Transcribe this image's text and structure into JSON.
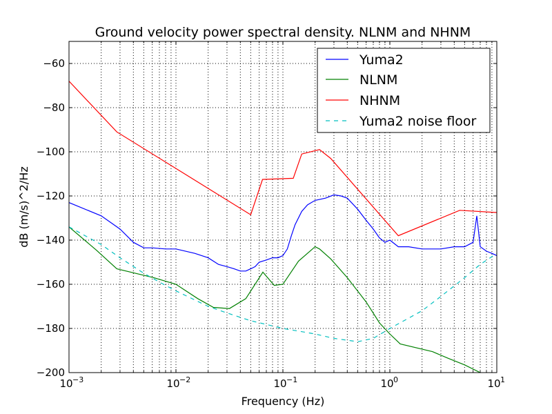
{
  "chart_data": {
    "type": "line",
    "title": "Ground velocity power spectral density. NLNM and NHNM",
    "xlabel": "Frequency (Hz)",
    "ylabel": "dB (m/s)^2/Hz",
    "xscale": "log",
    "xlim": [
      0.001,
      10
    ],
    "ylim": [
      -200,
      -50
    ],
    "grid": true,
    "legend_position": "top-right",
    "x_ticks": [
      {
        "value": 0.001,
        "base": "10",
        "exp": "−3"
      },
      {
        "value": 0.01,
        "base": "10",
        "exp": "−2"
      },
      {
        "value": 0.1,
        "base": "10",
        "exp": "−1"
      },
      {
        "value": 1,
        "base": "10",
        "exp": "0"
      },
      {
        "value": 10,
        "base": "10",
        "exp": "1"
      }
    ],
    "y_ticks": [
      {
        "value": -60,
        "label": "−60"
      },
      {
        "value": -80,
        "label": "−80"
      },
      {
        "value": -100,
        "label": "−100"
      },
      {
        "value": -120,
        "label": "−120"
      },
      {
        "value": -140,
        "label": "−140"
      },
      {
        "value": -160,
        "label": "−160"
      },
      {
        "value": -180,
        "label": "−180"
      },
      {
        "value": -200,
        "label": "−200"
      }
    ],
    "series": [
      {
        "name": "Yuma2",
        "color": "#0000ff",
        "dash": "solid",
        "x": [
          0.001,
          0.002,
          0.003,
          0.004,
          0.005,
          0.006,
          0.008,
          0.01,
          0.015,
          0.02,
          0.025,
          0.03,
          0.035,
          0.04,
          0.045,
          0.05,
          0.055,
          0.06,
          0.07,
          0.08,
          0.09,
          0.1,
          0.11,
          0.12,
          0.13,
          0.15,
          0.17,
          0.2,
          0.25,
          0.3,
          0.35,
          0.4,
          0.5,
          0.6,
          0.7,
          0.8,
          0.9,
          1.0,
          1.2,
          1.5,
          2,
          2.5,
          3,
          4,
          5,
          6,
          6.5,
          7,
          8,
          9,
          10
        ],
        "y": [
          -123,
          -129,
          -135,
          -141,
          -143.5,
          -143.5,
          -144,
          -144,
          -146,
          -148,
          -151,
          -152,
          -153,
          -154,
          -154,
          -153,
          -152,
          -150,
          -149,
          -148,
          -148,
          -147,
          -144,
          -138,
          -133,
          -127,
          -124,
          -122,
          -121,
          -119.5,
          -120,
          -121,
          -126,
          -131,
          -135,
          -139,
          -141,
          -140,
          -143,
          -143,
          -144,
          -144,
          -144,
          -143,
          -143,
          -141,
          -129,
          -143,
          -145,
          -146,
          -147
        ]
      },
      {
        "name": "NLNM",
        "color": "#008000",
        "dash": "solid",
        "x": [
          0.001,
          0.0018,
          0.0028,
          0.0062,
          0.01,
          0.016,
          0.0225,
          0.0232,
          0.0316,
          0.045,
          0.065,
          0.083,
          0.1,
          0.14,
          0.2,
          0.22,
          0.28,
          0.4,
          0.6,
          0.8,
          1.0,
          1.25,
          2.5,
          3.5,
          5,
          7,
          10
        ],
        "y": [
          -134,
          -144.5,
          -153,
          -157,
          -160,
          -166.5,
          -170.5,
          -170.5,
          -171,
          -166.5,
          -154.5,
          -160.5,
          -160,
          -149.5,
          -143,
          -144,
          -148.5,
          -157,
          -168,
          -177.5,
          -182.5,
          -187,
          -190.5,
          -193.5,
          -196.5,
          -200,
          -202
        ]
      },
      {
        "name": "NHNM",
        "color": "#ff0000",
        "dash": "solid",
        "x": [
          0.001,
          0.0028,
          0.05,
          0.0645,
          0.125,
          0.15,
          0.22,
          0.28,
          1.2,
          4.5,
          10
        ],
        "y": [
          -68,
          -91,
          -128.5,
          -112.5,
          -112,
          -101,
          -99,
          -103,
          -138,
          -126.5,
          -127.5
        ]
      },
      {
        "name": "Yuma2 noise floor",
        "color": "#00bfbf",
        "dash": "dashed",
        "x": [
          0.001,
          0.002,
          0.003,
          0.005,
          0.007,
          0.01,
          0.02,
          0.03,
          0.05,
          0.1,
          0.2,
          0.3,
          0.5,
          0.7,
          1.0,
          2,
          3,
          5,
          7,
          10
        ],
        "y": [
          -134,
          -142,
          -148,
          -155,
          -159,
          -163,
          -170,
          -173,
          -176.5,
          -180,
          -182.5,
          -184.5,
          -186,
          -184.5,
          -180,
          -172,
          -165.5,
          -157,
          -151,
          -146
        ]
      }
    ]
  }
}
